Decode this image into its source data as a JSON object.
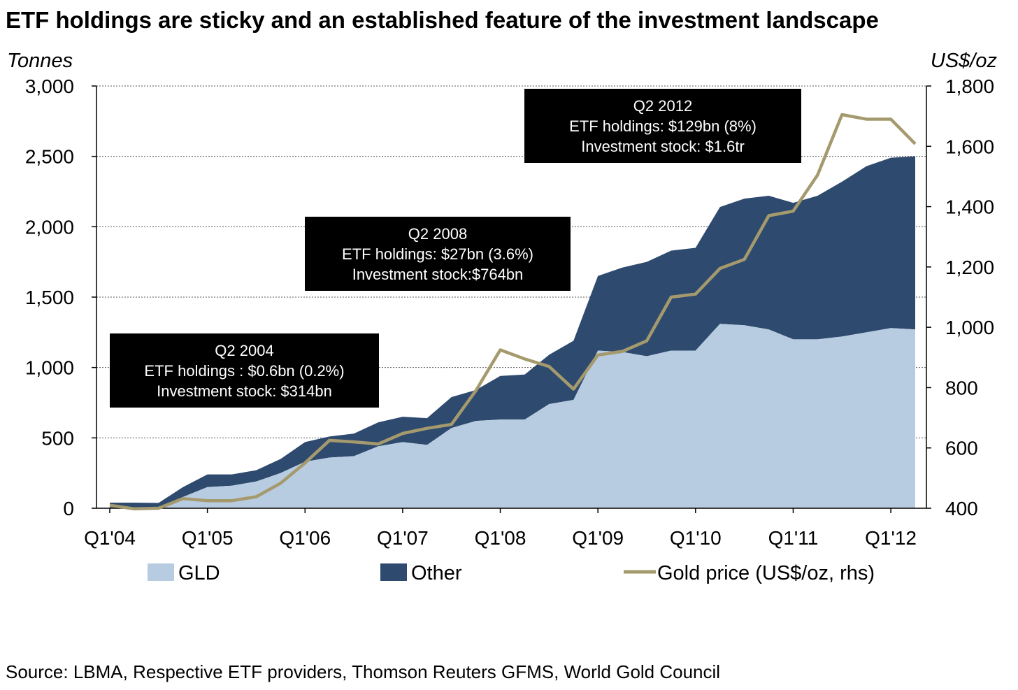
{
  "title": "ETF holdings are sticky and an established feature of the investment landscape",
  "source": "Source: LBMA, Respective ETF providers, Thomson Reuters GFMS,  World Gold Council",
  "colors": {
    "gld": "#b8cce1",
    "other": "#2e4a6e",
    "gold_line": "#a59a6e",
    "annotation_bg": "#000000"
  },
  "chart_data": {
    "type": "area",
    "xlabel": "",
    "left_axis": {
      "unit": "Tonnes",
      "ylim": [
        0,
        3000
      ],
      "ticks": [
        "0",
        "500",
        "1,000",
        "1,500",
        "2,000",
        "2,500",
        "3,000"
      ]
    },
    "right_axis": {
      "unit": "US$/oz",
      "ylim": [
        400,
        1800
      ],
      "ticks": [
        "400",
        "600",
        "800",
        "1,000",
        "1,200",
        "1,400",
        "1,600",
        "1,800"
      ]
    },
    "x_tick_labels": [
      "Q1'04",
      "Q1'05",
      "Q1'06",
      "Q1'07",
      "Q1'08",
      "Q1'09",
      "Q1'10",
      "Q1'11",
      "Q1'12"
    ],
    "x_tick_positions": [
      0,
      4,
      8,
      12,
      16,
      20,
      24,
      28,
      32
    ],
    "x": [
      "Q1'04",
      "Q2'04",
      "Q3'04",
      "Q4'04",
      "Q1'05",
      "Q2'05",
      "Q3'05",
      "Q4'05",
      "Q1'06",
      "Q2'06",
      "Q3'06",
      "Q4'06",
      "Q1'07",
      "Q2'07",
      "Q3'07",
      "Q4'07",
      "Q1'08",
      "Q2'08",
      "Q3'08",
      "Q4'08",
      "Q1'09",
      "Q2'09",
      "Q3'09",
      "Q4'09",
      "Q1'10",
      "Q2'10",
      "Q3'10",
      "Q4'10",
      "Q1'11",
      "Q2'11",
      "Q3'11",
      "Q4'11",
      "Q1'12",
      "Q2'12"
    ],
    "grid": true,
    "legend_position": "bottom",
    "series": [
      {
        "name": "GLD",
        "axis": "left",
        "kind": "area",
        "values": [
          5,
          5,
          8,
          80,
          150,
          160,
          190,
          250,
          330,
          360,
          370,
          440,
          470,
          450,
          570,
          620,
          630,
          630,
          740,
          770,
          1120,
          1110,
          1080,
          1120,
          1120,
          1310,
          1300,
          1270,
          1200,
          1200,
          1220,
          1250,
          1280,
          1270
        ]
      },
      {
        "name": "Other",
        "axis": "left",
        "kind": "area",
        "values": [
          35,
          35,
          30,
          70,
          90,
          80,
          80,
          100,
          140,
          150,
          160,
          170,
          180,
          190,
          220,
          220,
          310,
          320,
          350,
          420,
          530,
          600,
          670,
          710,
          730,
          830,
          900,
          950,
          970,
          1020,
          1100,
          1180,
          1210,
          1230
        ]
      },
      {
        "name": "Gold price (US$/oz, rhs)",
        "axis": "right",
        "kind": "line",
        "values": [
          410,
          398,
          400,
          432,
          425,
          425,
          438,
          483,
          550,
          625,
          620,
          613,
          648,
          665,
          678,
          790,
          925,
          895,
          870,
          795,
          908,
          920,
          955,
          1100,
          1110,
          1195,
          1225,
          1370,
          1385,
          1505,
          1705,
          1690,
          1690,
          1608
        ]
      }
    ],
    "annotations": [
      {
        "lines": [
          "Q2 2004",
          "ETF holdings : $0.6bn (0.2%)",
          "Investment  stock: $314bn"
        ]
      },
      {
        "lines": [
          "Q2 2008",
          "ETF holdings: $27bn (3.6%)",
          "Investment  stock:$764bn"
        ]
      },
      {
        "lines": [
          "Q2 2012",
          "ETF holdings: $129bn (8%)",
          "Investment  stock: $1.6tr"
        ]
      }
    ]
  }
}
